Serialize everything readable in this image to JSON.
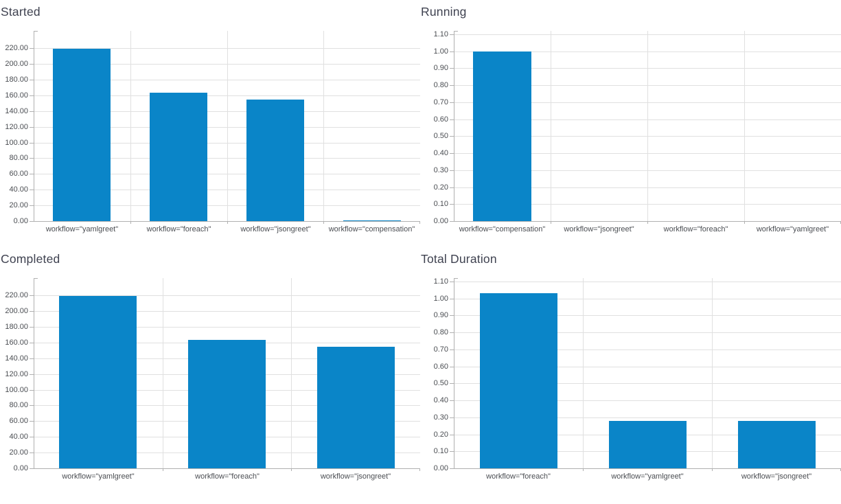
{
  "style": {
    "bar_color": "#0a85c8",
    "grid_color": "#e0e0e0",
    "axis_color": "#b0b0b0",
    "title_color": "#3f4250",
    "label_color": "#4a4d52",
    "background": "#ffffff"
  },
  "chart_data": [
    {
      "id": "started",
      "type": "bar",
      "title": "Started",
      "categories": [
        "workflow=\"yamlgreet\"",
        "workflow=\"foreach\"",
        "workflow=\"jsongreet\"",
        "workflow=\"compensation\""
      ],
      "values": [
        219,
        163,
        155,
        1
      ],
      "xlabel": "",
      "ylabel": "",
      "ylim": [
        0,
        220
      ],
      "ytick_step": 20,
      "ytick_labels": [
        "0.00",
        "20.00",
        "40.00",
        "60.00",
        "80.00",
        "100.00",
        "120.00",
        "140.00",
        "160.00",
        "180.00",
        "200.00",
        "220.00"
      ],
      "ymax_render": 242,
      "grid": "on",
      "legend": "none",
      "panel_position": "top-left"
    },
    {
      "id": "running",
      "type": "bar",
      "title": "Running",
      "categories": [
        "workflow=\"compensation\"",
        "workflow=\"jsongreet\"",
        "workflow=\"foreach\"",
        "workflow=\"yamlgreet\""
      ],
      "values": [
        1.0,
        0,
        0,
        0
      ],
      "xlabel": "",
      "ylabel": "",
      "ylim": [
        0,
        1.1
      ],
      "ytick_step": 0.1,
      "ytick_labels": [
        "0.00",
        "0.10",
        "0.20",
        "0.30",
        "0.40",
        "0.50",
        "0.60",
        "0.70",
        "0.80",
        "0.90",
        "1.00",
        "1.10"
      ],
      "ymax_render": 1.12,
      "grid": "on",
      "legend": "none",
      "panel_position": "top-right"
    },
    {
      "id": "completed",
      "type": "bar",
      "title": "Completed",
      "categories": [
        "workflow=\"yamlgreet\"",
        "workflow=\"foreach\"",
        "workflow=\"jsongreet\""
      ],
      "values": [
        219,
        163,
        155
      ],
      "xlabel": "",
      "ylabel": "",
      "ylim": [
        0,
        220
      ],
      "ytick_step": 20,
      "ytick_labels": [
        "0.00",
        "20.00",
        "40.00",
        "60.00",
        "80.00",
        "100.00",
        "120.00",
        "140.00",
        "160.00",
        "180.00",
        "200.00",
        "220.00"
      ],
      "ymax_render": 242,
      "grid": "on",
      "legend": "none",
      "panel_position": "bottom-left"
    },
    {
      "id": "total_duration",
      "type": "bar",
      "title": "Total Duration",
      "categories": [
        "workflow=\"foreach\"",
        "workflow=\"yamlgreet\"",
        "workflow=\"jsongreet\""
      ],
      "values": [
        1.03,
        0.28,
        0.28
      ],
      "xlabel": "",
      "ylabel": "",
      "ylim": [
        0,
        1.1
      ],
      "ytick_step": 0.1,
      "ytick_labels": [
        "0.00",
        "0.10",
        "0.20",
        "0.30",
        "0.40",
        "0.50",
        "0.60",
        "0.70",
        "0.80",
        "0.90",
        "1.00",
        "1.10"
      ],
      "ymax_render": 1.12,
      "grid": "on",
      "legend": "none",
      "panel_position": "bottom-right"
    }
  ]
}
